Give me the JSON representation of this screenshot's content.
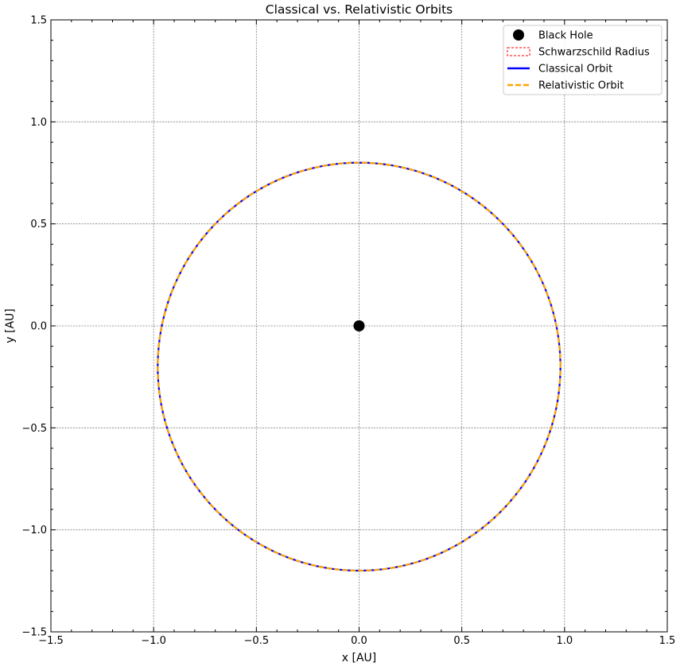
{
  "chart_data": {
    "type": "line",
    "title": "Classical vs. Relativistic Orbits",
    "xlabel": "x [AU]",
    "ylabel": "y [AU]",
    "xlim": [
      -1.5,
      1.5
    ],
    "ylim": [
      -1.5,
      1.5
    ],
    "xticks": [
      -1.5,
      -1.0,
      -0.5,
      0.0,
      0.5,
      1.0,
      1.5
    ],
    "yticks": [
      -1.5,
      -1.0,
      -0.5,
      0.0,
      0.5,
      1.0,
      1.5
    ],
    "xtick_labels": [
      "−1.5",
      "−1.0",
      "−0.5",
      "0.0",
      "0.5",
      "1.0",
      "1.5"
    ],
    "ytick_labels": [
      "−1.5",
      "−1.0",
      "−0.5",
      "0.0",
      "0.5",
      "1.0",
      "1.5"
    ],
    "grid": true,
    "legend_position": "top-right",
    "black_hole": {
      "name": "Black Hole",
      "x": 0.0,
      "y": 0.0,
      "color": "#000000"
    },
    "schwarzschild": {
      "name": "Schwarzschild Radius",
      "color": "#ff0000"
    },
    "series": [
      {
        "name": "Classical Orbit",
        "color": "#0000ff",
        "shape": "ellipse",
        "center": [
          0.0,
          -0.2
        ],
        "semi_axis_x": 0.98,
        "semi_axis_y": 1.0,
        "x_extent": [
          -0.98,
          0.98
        ],
        "y_extent": [
          -1.2,
          0.8
        ]
      },
      {
        "name": "Relativistic Orbit",
        "color": "#ffa500",
        "shape": "ellipse",
        "center": [
          0.0,
          -0.2
        ],
        "semi_axis_x": 0.98,
        "semi_axis_y": 1.0,
        "x_extent": [
          -0.98,
          0.98
        ],
        "y_extent": [
          -1.2,
          0.8
        ]
      }
    ]
  }
}
